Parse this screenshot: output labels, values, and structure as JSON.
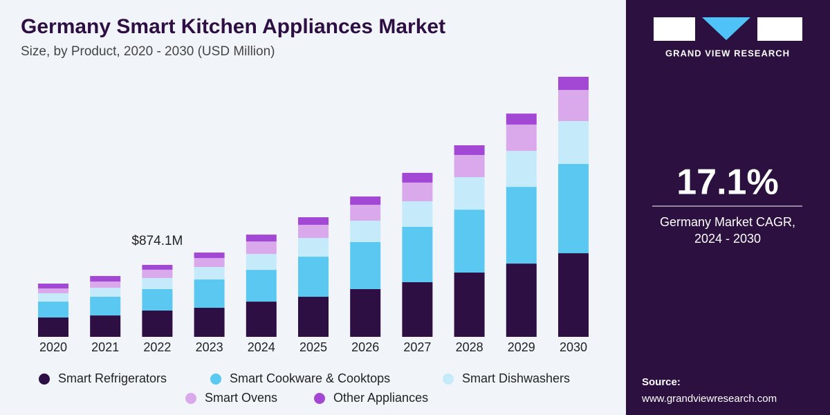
{
  "chart_data": {
    "type": "bar",
    "stacked": true,
    "title": "Germany Smart Kitchen Appliances Market",
    "subtitle": "Size, by Product, 2020 - 2030 (USD Million)",
    "categories": [
      "2020",
      "2021",
      "2022",
      "2023",
      "2024",
      "2025",
      "2026",
      "2027",
      "2028",
      "2029",
      "2030"
    ],
    "series": [
      {
        "name": "Smart Refrigerators",
        "color": "#2e0f44",
        "values": [
          235,
          260,
          319.5,
          353,
          428,
          487,
          580,
          664,
          781,
          890,
          1016
        ]
      },
      {
        "name": "Smart Cookware & Cooktops",
        "color": "#5bc8f2",
        "values": [
          193,
          227,
          260.4,
          344,
          386,
          487,
          571,
          672,
          764,
          932,
          1084
        ]
      },
      {
        "name": "Smart Dishwashers",
        "color": "#c5ebfa",
        "values": [
          101,
          109,
          134.5,
          151,
          193,
          227,
          260,
          311,
          395,
          437,
          521
        ]
      },
      {
        "name": "Smart Ovens",
        "color": "#d9a9ec",
        "values": [
          59,
          76,
          100.9,
          109,
          151,
          160,
          193,
          227,
          269,
          319,
          378
        ]
      },
      {
        "name": "Other Appliances",
        "color": "#a348d4",
        "values": [
          59,
          67,
          58.8,
          67,
          84,
          92,
          101,
          118,
          118,
          134,
          160
        ]
      }
    ],
    "annotations": [
      {
        "text": "$874.1M",
        "category": "2022"
      }
    ]
  },
  "sidebar": {
    "brand": "GRAND VIEW RESEARCH",
    "cagr": "17.1%",
    "cagr_label": [
      "Germany Market CAGR,",
      "2024 - 2030"
    ],
    "source_label": "Source:",
    "source_url": "www.grandviewresearch.com"
  }
}
